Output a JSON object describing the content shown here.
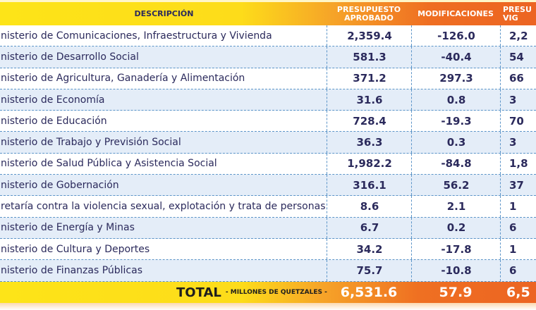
{
  "header": {
    "descripcion": "DESCRIPCIÓN",
    "col1": "PRESUPUESTO APROBADO",
    "col2": "MODIFICACIONES",
    "col3": "PRESU VIG"
  },
  "rows": [
    {
      "desc": "nisterio de Comunicaciones, Infraestructura y Vivienda",
      "aprobado": "2,359.4",
      "modificaciones": "-126.0",
      "vigente": "2,2"
    },
    {
      "desc": "nisterio de Desarrollo Social",
      "aprobado": "581.3",
      "modificaciones": "-40.4",
      "vigente": "54"
    },
    {
      "desc": "nisterio de Agricultura, Ganadería y Alimentación",
      "aprobado": "371.2",
      "modificaciones": "297.3",
      "vigente": "66"
    },
    {
      "desc": "nisterio de Economía",
      "aprobado": "31.6",
      "modificaciones": "0.8",
      "vigente": "3"
    },
    {
      "desc": "nisterio de Educación",
      "aprobado": "728.4",
      "modificaciones": "-19.3",
      "vigente": "70"
    },
    {
      "desc": "nisterio de Trabajo y Previsión Social",
      "aprobado": "36.3",
      "modificaciones": "0.3",
      "vigente": "3"
    },
    {
      "desc": "nisterio de Salud Pública y Asistencia Social",
      "aprobado": "1,982.2",
      "modificaciones": "-84.8",
      "vigente": "1,8"
    },
    {
      "desc": "nisterio de Gobernación",
      "aprobado": "316.1",
      "modificaciones": "56.2",
      "vigente": "37"
    },
    {
      "desc": "retaría contra la violencia sexual, explotación y trata de personas",
      "aprobado": "8.6",
      "modificaciones": "2.1",
      "vigente": "1"
    },
    {
      "desc": "nisterio de Energía y Minas",
      "aprobado": "6.7",
      "modificaciones": "0.2",
      "vigente": "6"
    },
    {
      "desc": "nisterio de Cultura y Deportes",
      "aprobado": "34.2",
      "modificaciones": "-17.8",
      "vigente": "1"
    },
    {
      "desc": "nisterio de Finanzas Públicas",
      "aprobado": "75.7",
      "modificaciones": "-10.8",
      "vigente": "6"
    }
  ],
  "total": {
    "label": "TOTAL",
    "sublabel": "- MILLONES DE QUETZALES -",
    "aprobado": "6,531.6",
    "modificaciones": "57.9",
    "vigente": "6,5"
  },
  "colors": {
    "text": "#2b2a5c",
    "yellow": "#fde418",
    "orange": "#ec6422",
    "row_alt": "#e4edf8",
    "grid": "#5b94c8"
  }
}
